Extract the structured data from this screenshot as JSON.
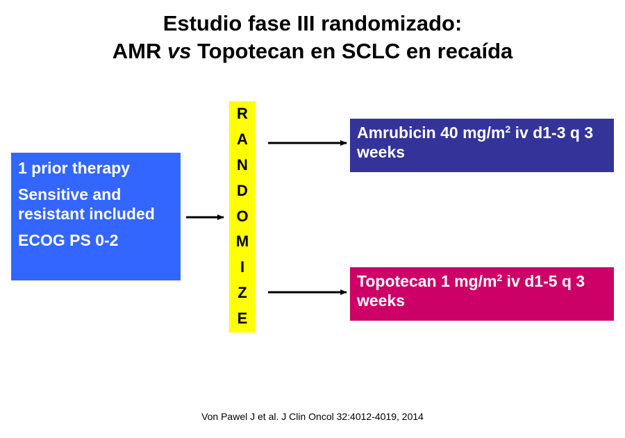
{
  "title": {
    "line1": "Estudio fase III randomizado:",
    "line2_a": "AMR ",
    "line2_em": "vs",
    "line2_b": " Topotecan en SCLC en recaída"
  },
  "eligibility": {
    "items": [
      "1 prior therapy",
      "Sensitive and resistant included",
      "ECOG PS 0-2"
    ]
  },
  "randomize": {
    "letters": [
      "R",
      "A",
      "N",
      "D",
      "O",
      "M",
      "I",
      "Z",
      "E"
    ]
  },
  "arms": [
    {
      "pre": "Amrubicin 40 mg/m",
      "sup": "2",
      "post": " iv d1-3 q 3 weeks"
    },
    {
      "pre": "Topotecan 1 mg/m",
      "sup": "2",
      "post": " iv d1-5 q 3 weeks"
    }
  ],
  "citation": "Von Pawel J et al. J Clin Oncol 32:4012-4019, 2014",
  "colors": {
    "eligibility": "#3366ff",
    "randomize": "#ffff00",
    "arm_amrubicin": "#333399",
    "arm_topotecan": "#cc0066"
  }
}
